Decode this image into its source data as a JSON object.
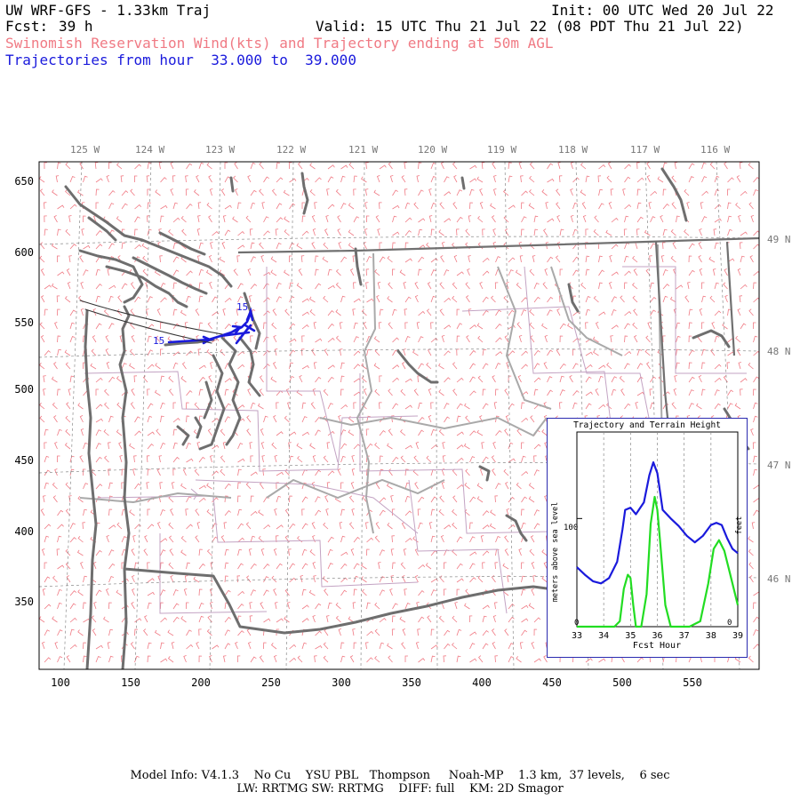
{
  "header": {
    "title": "UW WRF-GFS - 1.33km Traj",
    "init": "Init: 00 UTC Wed 20 Jul 22",
    "fcst_label": "Fcst:",
    "fcst_value": "39 h",
    "valid": "Valid: 15 UTC Thu 21 Jul 22 (08 PDT Thu 21 Jul 22)",
    "subtitle": "Swinomish Reservation Wind(kts) and Trajectory ending at 50m AGL",
    "traj_range": "Trajectories from hour  33.000 to  39.000"
  },
  "map": {
    "top_lon_labels": [
      "125 W",
      "124 W",
      "123 W",
      "122 W",
      "121 W",
      "120 W",
      "119 W",
      "118 W",
      "117 W",
      "116 W"
    ],
    "right_lat_labels": [
      "49 N",
      "48 N",
      "47 N",
      "46 N"
    ],
    "left_axis_ticks": [
      "650",
      "600",
      "550",
      "500",
      "450",
      "400",
      "350"
    ],
    "bottom_axis_ticks": [
      "100",
      "150",
      "200",
      "250",
      "300",
      "350",
      "400",
      "450",
      "500",
      "550"
    ],
    "trajectory_start_label": "15",
    "trajectory_end_label": "15",
    "colors": {
      "wind_barbs": "#f07a84",
      "coast": "#707070",
      "state_lines": "#a8a8a8",
      "counties": "#c090c0",
      "trajectory": "#1a1adc"
    }
  },
  "inset": {
    "title": "Trajectory and Terrain Height",
    "ylabel_left": "meters above sea level",
    "ylabel_right": "feet",
    "xlabel": "Fcst Hour",
    "y_tick_left": "100",
    "zero_left": "0",
    "zero_right": "0"
  },
  "chart_data": {
    "type": "line",
    "title": "Trajectory and Terrain Height",
    "xlabel": "Fcst Hour",
    "ylabel": "meters above sea level",
    "xlim": [
      33,
      39
    ],
    "ylim": [
      0,
      180
    ],
    "x_ticks": [
      "33",
      "34",
      "35",
      "36",
      "37",
      "38",
      "39"
    ],
    "series": [
      {
        "color": "#1a1adc",
        "x": [
          33,
          33.3,
          33.6,
          33.9,
          34.2,
          34.5,
          34.7,
          34.8,
          35.0,
          35.2,
          35.5,
          35.7,
          35.85,
          36.0,
          36.2,
          36.5,
          36.8,
          37.1,
          37.4,
          37.7,
          38.0,
          38.2,
          38.4,
          38.6,
          38.8,
          39.0
        ],
        "values": [
          55,
          48,
          42,
          40,
          45,
          60,
          90,
          108,
          110,
          104,
          115,
          140,
          152,
          142,
          108,
          100,
          93,
          84,
          78,
          84,
          94,
          96,
          94,
          82,
          72,
          68
        ]
      },
      {
        "color": "#22dd22",
        "x": [
          33,
          33.5,
          34.0,
          34.4,
          34.6,
          34.75,
          34.9,
          35.0,
          35.1,
          35.2,
          35.4,
          35.6,
          35.75,
          35.9,
          36.0,
          36.1,
          36.3,
          36.5,
          36.8,
          37.2,
          37.6,
          37.9,
          38.1,
          38.3,
          38.5,
          38.7,
          39.0
        ],
        "values": [
          0,
          0,
          0,
          0,
          5,
          35,
          48,
          45,
          20,
          0,
          0,
          30,
          95,
          120,
          108,
          80,
          20,
          0,
          0,
          0,
          5,
          40,
          72,
          80,
          70,
          50,
          20
        ]
      }
    ]
  },
  "footer": {
    "line1": "Model Info: V4.1.3    No Cu    YSU PBL   Thompson     Noah-MP    1.3 km,  37 levels,    6 sec",
    "line2": "LW: RRTMG SW: RRTMG    DIFF: full    KM: 2D Smagor"
  }
}
